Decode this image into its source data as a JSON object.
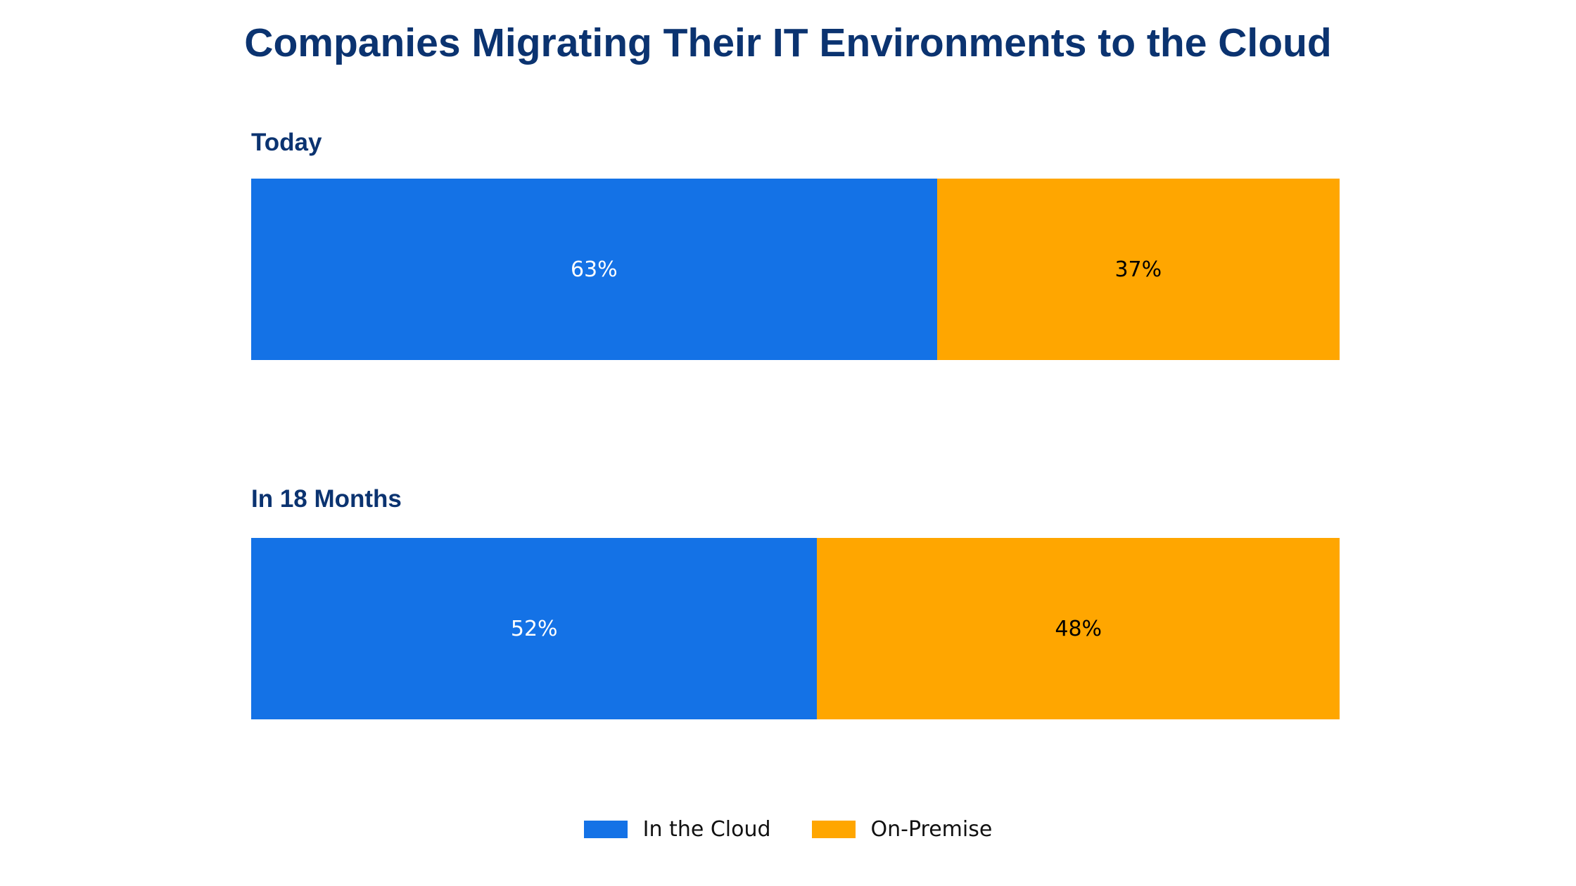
{
  "colors": {
    "title": "#0b3370",
    "cloud": "#1472e6",
    "premise": "#ffa600"
  },
  "chart_data": {
    "type": "bar",
    "orientation": "horizontal",
    "stacked": true,
    "normalized": true,
    "title": "Companies Migrating Their IT Environments to the Cloud",
    "categories": [
      "Today",
      "In 18 Months"
    ],
    "series": [
      {
        "name": "In the Cloud",
        "values": [
          63,
          52
        ],
        "labels": [
          "63%",
          "52%"
        ],
        "color": "#1472e6"
      },
      {
        "name": "On-Premise",
        "values": [
          37,
          48
        ],
        "labels": [
          "37%",
          "48%"
        ],
        "color": "#ffa600"
      }
    ],
    "unit": "%",
    "xlim": [
      0,
      100
    ],
    "grid": false,
    "legend": "bottom-center"
  }
}
